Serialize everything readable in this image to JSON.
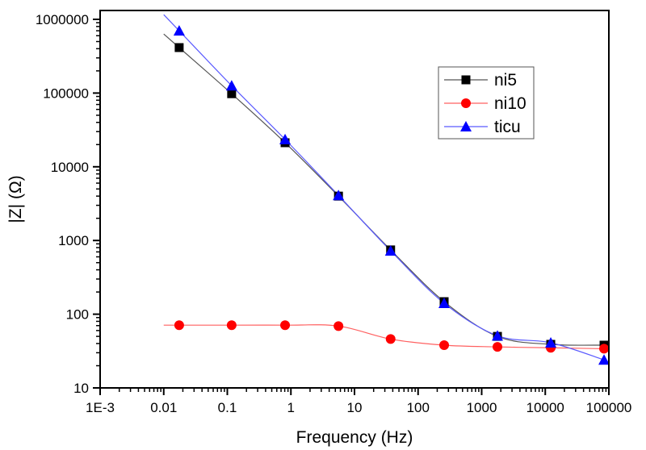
{
  "chart_data": {
    "type": "line",
    "title": "",
    "xlabel": "Frequency (Hz)",
    "ylabel": "|Z| (Ω)",
    "xscale": "log",
    "yscale": "log",
    "xlim": [
      0.001,
      100000
    ],
    "ylim": [
      10,
      1000000
    ],
    "x_ticks": [
      0.001,
      0.01,
      0.1,
      1,
      10,
      100,
      1000,
      10000,
      100000
    ],
    "x_tick_labels": [
      "1E-3",
      "0.01",
      "0.1",
      "1",
      "10",
      "100",
      "1000",
      "10000",
      "100000"
    ],
    "y_ticks": [
      10,
      100,
      1000,
      10000,
      100000,
      1000000
    ],
    "y_tick_labels": [
      "10",
      "100",
      "1000",
      "10000",
      "100000",
      "1000000"
    ],
    "grid": false,
    "legend_position": "top-right",
    "x": [
      0.0175,
      0.117,
      0.81,
      5.6,
      37,
      257,
      1770,
      12200,
      84000
    ],
    "series": [
      {
        "name": "ni5",
        "color": "#000000",
        "line_color": "#555555",
        "marker": "square",
        "values": [
          414000,
          98000,
          21200,
          4000,
          745,
          148,
          50,
          39,
          38
        ]
      },
      {
        "name": "ni10",
        "color": "#ff0000",
        "line_color": "#ff6060",
        "marker": "circle",
        "values": [
          71,
          71,
          71,
          69,
          46,
          38,
          36,
          35,
          34
        ]
      },
      {
        "name": "ticu",
        "color": "#0000ff",
        "line_color": "#5a5aff",
        "marker": "triangle",
        "values": [
          700000,
          126000,
          23500,
          4100,
          725,
          141,
          51,
          41,
          24
        ]
      }
    ],
    "fit_curve_start_x": 0.01
  }
}
